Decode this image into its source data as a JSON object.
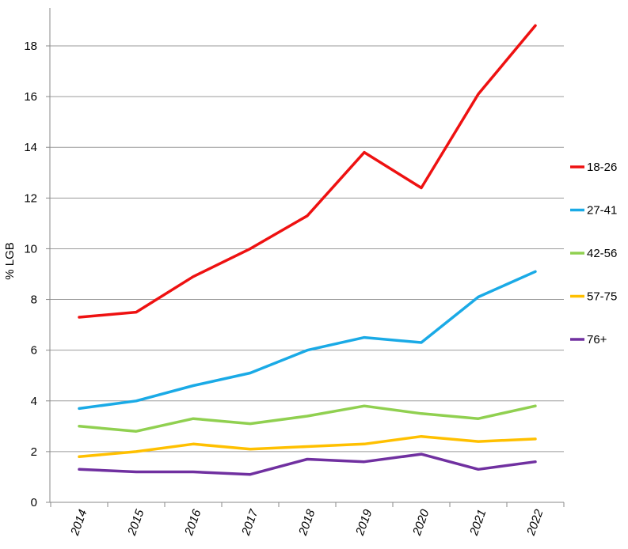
{
  "chart_data": {
    "type": "line",
    "title": "",
    "xlabel": "",
    "ylabel": "% LGB",
    "ylim": [
      0,
      19.5
    ],
    "yticks": [
      0,
      2,
      4,
      6,
      8,
      10,
      12,
      14,
      16,
      18
    ],
    "x": [
      "2014",
      "2015",
      "2016",
      "2017",
      "2018",
      "2019",
      "2020",
      "2021",
      "2022"
    ],
    "grid": true,
    "legend_position": "right",
    "series": [
      {
        "name": "18-26",
        "color": "#ee1111",
        "values": [
          7.3,
          7.5,
          8.9,
          10.0,
          11.3,
          13.8,
          12.4,
          16.1,
          18.8
        ]
      },
      {
        "name": "27-41",
        "color": "#1aaae6",
        "values": [
          3.7,
          4.0,
          4.6,
          5.1,
          6.0,
          6.5,
          6.3,
          8.1,
          9.1
        ]
      },
      {
        "name": "42-56",
        "color": "#90d050",
        "values": [
          3.0,
          2.8,
          3.3,
          3.1,
          3.4,
          3.8,
          3.5,
          3.3,
          3.8
        ]
      },
      {
        "name": "57-75",
        "color": "#ffc000",
        "values": [
          1.8,
          2.0,
          2.3,
          2.1,
          2.2,
          2.3,
          2.6,
          2.4,
          2.5
        ]
      },
      {
        "name": "76+",
        "color": "#7030a0",
        "values": [
          1.3,
          1.2,
          1.2,
          1.1,
          1.7,
          1.6,
          1.9,
          1.3,
          1.6
        ]
      }
    ]
  }
}
